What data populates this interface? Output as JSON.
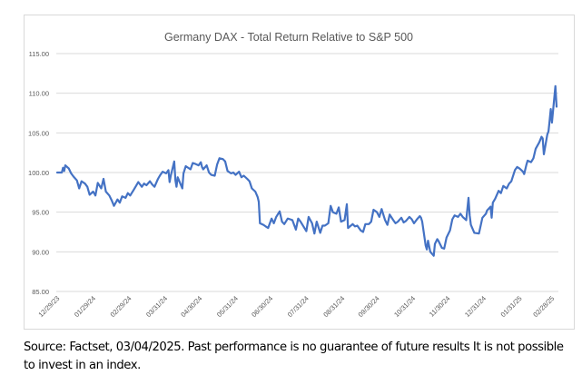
{
  "chart_data": {
    "type": "line",
    "title": "Germany DAX - Total Return Relative to S&P 500",
    "xlabel": "",
    "ylabel": "",
    "ylim": [
      85,
      115
    ],
    "yticks": [
      "85.00",
      "90.00",
      "95.00",
      "100.00",
      "105.00",
      "110.00",
      "115.00"
    ],
    "ytick_values": [
      85,
      90,
      95,
      100,
      105,
      110,
      115
    ],
    "xticks": [
      "12/29/23",
      "01/29/24",
      "02/29/24",
      "03/31/24",
      "04/30/24",
      "05/31/24",
      "06/30/24",
      "07/31/24",
      "08/31/24",
      "09/30/24",
      "10/31/24",
      "11/30/24",
      "12/31/24",
      "01/31/25",
      "02/28/25"
    ],
    "x_range": [
      "2023-12-29",
      "2025-03-04"
    ],
    "grid": "horizontal",
    "legend": "none",
    "line_color": "#4472c4",
    "series": [
      {
        "name": "Germany DAX - Total Return Relative to S&P 500",
        "points": [
          [
            "2023-12-29",
            100.0
          ],
          [
            "2024-01-02",
            100.0
          ],
          [
            "2024-01-03",
            100.6
          ],
          [
            "2024-01-04",
            100.2
          ],
          [
            "2024-01-05",
            100.9
          ],
          [
            "2024-01-08",
            100.5
          ],
          [
            "2024-01-10",
            99.9
          ],
          [
            "2024-01-12",
            99.5
          ],
          [
            "2024-01-15",
            99.0
          ],
          [
            "2024-01-17",
            98.0
          ],
          [
            "2024-01-19",
            98.9
          ],
          [
            "2024-01-22",
            98.6
          ],
          [
            "2024-01-24",
            98.2
          ],
          [
            "2024-01-26",
            97.2
          ],
          [
            "2024-01-29",
            97.6
          ],
          [
            "2024-01-31",
            97.1
          ],
          [
            "2024-02-02",
            98.7
          ],
          [
            "2024-02-05",
            98.0
          ],
          [
            "2024-02-07",
            99.2
          ],
          [
            "2024-02-09",
            97.6
          ],
          [
            "2024-02-12",
            97.1
          ],
          [
            "2024-02-14",
            96.5
          ],
          [
            "2024-02-16",
            95.8
          ],
          [
            "2024-02-19",
            96.6
          ],
          [
            "2024-02-21",
            96.2
          ],
          [
            "2024-02-23",
            97.0
          ],
          [
            "2024-02-26",
            96.8
          ],
          [
            "2024-02-28",
            97.4
          ],
          [
            "2024-03-01",
            97.1
          ],
          [
            "2024-03-04",
            97.8
          ],
          [
            "2024-03-06",
            98.3
          ],
          [
            "2024-03-08",
            98.8
          ],
          [
            "2024-03-11",
            98.2
          ],
          [
            "2024-03-13",
            98.6
          ],
          [
            "2024-03-15",
            98.4
          ],
          [
            "2024-03-18",
            98.9
          ],
          [
            "2024-03-20",
            98.5
          ],
          [
            "2024-03-22",
            98.2
          ],
          [
            "2024-03-25",
            99.2
          ],
          [
            "2024-03-27",
            99.7
          ],
          [
            "2024-03-29",
            100.1
          ],
          [
            "2024-04-01",
            99.9
          ],
          [
            "2024-04-03",
            100.3
          ],
          [
            "2024-04-04",
            98.8
          ],
          [
            "2024-04-05",
            99.6
          ],
          [
            "2024-04-08",
            101.4
          ],
          [
            "2024-04-09",
            99.0
          ],
          [
            "2024-04-10",
            98.2
          ],
          [
            "2024-04-11",
            99.4
          ],
          [
            "2024-04-15",
            98.0
          ],
          [
            "2024-04-16",
            99.9
          ],
          [
            "2024-04-18",
            100.8
          ],
          [
            "2024-04-22",
            100.4
          ],
          [
            "2024-04-24",
            101.2
          ],
          [
            "2024-04-26",
            101.1
          ],
          [
            "2024-04-29",
            100.9
          ],
          [
            "2024-05-01",
            101.3
          ],
          [
            "2024-05-02",
            100.7
          ],
          [
            "2024-05-03",
            100.4
          ],
          [
            "2024-05-06",
            100.9
          ],
          [
            "2024-05-08",
            100.0
          ],
          [
            "2024-05-10",
            99.7
          ],
          [
            "2024-05-13",
            99.6
          ],
          [
            "2024-05-15",
            101.0
          ],
          [
            "2024-05-17",
            101.8
          ],
          [
            "2024-05-20",
            101.7
          ],
          [
            "2024-05-22",
            101.4
          ],
          [
            "2024-05-24",
            100.2
          ],
          [
            "2024-05-27",
            99.9
          ],
          [
            "2024-05-29",
            100.0
          ],
          [
            "2024-05-31",
            99.7
          ],
          [
            "2024-06-03",
            100.1
          ],
          [
            "2024-06-05",
            99.4
          ],
          [
            "2024-06-07",
            99.6
          ],
          [
            "2024-06-10",
            99.2
          ],
          [
            "2024-06-12",
            98.9
          ],
          [
            "2024-06-14",
            98.0
          ],
          [
            "2024-06-17",
            97.6
          ],
          [
            "2024-06-19",
            96.9
          ],
          [
            "2024-06-20",
            96.3
          ],
          [
            "2024-06-21",
            93.6
          ],
          [
            "2024-06-24",
            93.4
          ],
          [
            "2024-06-26",
            93.2
          ],
          [
            "2024-06-28",
            93.0
          ],
          [
            "2024-07-01",
            94.2
          ],
          [
            "2024-07-03",
            93.6
          ],
          [
            "2024-07-05",
            94.4
          ],
          [
            "2024-07-08",
            95.1
          ],
          [
            "2024-07-10",
            93.8
          ],
          [
            "2024-07-12",
            93.5
          ],
          [
            "2024-07-15",
            94.2
          ],
          [
            "2024-07-17",
            94.1
          ],
          [
            "2024-07-19",
            94.0
          ],
          [
            "2024-07-22",
            92.8
          ],
          [
            "2024-07-24",
            94.2
          ],
          [
            "2024-07-26",
            93.8
          ],
          [
            "2024-07-29",
            93.1
          ],
          [
            "2024-07-31",
            92.6
          ],
          [
            "2024-08-02",
            94.4
          ],
          [
            "2024-08-05",
            93.6
          ],
          [
            "2024-08-07",
            92.3
          ],
          [
            "2024-08-09",
            93.8
          ],
          [
            "2024-08-12",
            92.4
          ],
          [
            "2024-08-14",
            93.3
          ],
          [
            "2024-08-16",
            93.3
          ],
          [
            "2024-08-19",
            93.6
          ],
          [
            "2024-08-21",
            95.8
          ],
          [
            "2024-08-23",
            95.0
          ],
          [
            "2024-08-26",
            94.8
          ],
          [
            "2024-08-28",
            95.6
          ],
          [
            "2024-08-30",
            93.8
          ],
          [
            "2024-09-02",
            94.0
          ],
          [
            "2024-09-04",
            96.0
          ],
          [
            "2024-09-05",
            93.0
          ],
          [
            "2024-09-09",
            93.5
          ],
          [
            "2024-09-11",
            93.2
          ],
          [
            "2024-09-13",
            93.3
          ],
          [
            "2024-09-16",
            92.7
          ],
          [
            "2024-09-18",
            92.5
          ],
          [
            "2024-09-20",
            93.5
          ],
          [
            "2024-09-23",
            93.5
          ],
          [
            "2024-09-25",
            93.8
          ],
          [
            "2024-09-27",
            95.3
          ],
          [
            "2024-09-30",
            95.0
          ],
          [
            "2024-10-02",
            94.4
          ],
          [
            "2024-10-04",
            95.4
          ],
          [
            "2024-10-07",
            94.0
          ],
          [
            "2024-10-09",
            93.4
          ],
          [
            "2024-10-11",
            94.7
          ],
          [
            "2024-10-14",
            94.0
          ],
          [
            "2024-10-16",
            93.6
          ],
          [
            "2024-10-18",
            93.8
          ],
          [
            "2024-10-21",
            94.3
          ],
          [
            "2024-10-23",
            93.7
          ],
          [
            "2024-10-25",
            93.9
          ],
          [
            "2024-10-28",
            94.4
          ],
          [
            "2024-10-30",
            94.1
          ],
          [
            "2024-11-01",
            93.6
          ],
          [
            "2024-11-04",
            94.2
          ],
          [
            "2024-11-06",
            94.5
          ],
          [
            "2024-11-07",
            94.3
          ],
          [
            "2024-11-08",
            93.8
          ],
          [
            "2024-11-11",
            90.8
          ],
          [
            "2024-11-12",
            90.3
          ],
          [
            "2024-11-13",
            91.4
          ],
          [
            "2024-11-15",
            90.0
          ],
          [
            "2024-11-18",
            89.5
          ],
          [
            "2024-11-19",
            91.0
          ],
          [
            "2024-11-21",
            91.6
          ],
          [
            "2024-11-22",
            91.4
          ],
          [
            "2024-11-25",
            90.5
          ],
          [
            "2024-11-27",
            90.4
          ],
          [
            "2024-11-29",
            91.8
          ],
          [
            "2024-12-02",
            92.7
          ],
          [
            "2024-12-04",
            94.1
          ],
          [
            "2024-12-06",
            94.6
          ],
          [
            "2024-12-09",
            94.4
          ],
          [
            "2024-12-11",
            94.8
          ],
          [
            "2024-12-13",
            94.4
          ],
          [
            "2024-12-16",
            94.0
          ],
          [
            "2024-12-18",
            96.8
          ],
          [
            "2024-12-19",
            94.6
          ],
          [
            "2024-12-20",
            93.4
          ],
          [
            "2024-12-23",
            92.4
          ],
          [
            "2024-12-27",
            92.3
          ],
          [
            "2024-12-30",
            94.3
          ],
          [
            "2025-01-02",
            94.8
          ],
          [
            "2025-01-03",
            95.2
          ],
          [
            "2025-01-06",
            95.7
          ],
          [
            "2025-01-07",
            94.3
          ],
          [
            "2025-01-08",
            96.2
          ],
          [
            "2025-01-10",
            96.7
          ],
          [
            "2025-01-13",
            97.7
          ],
          [
            "2025-01-15",
            97.4
          ],
          [
            "2025-01-17",
            98.3
          ],
          [
            "2025-01-20",
            98.0
          ],
          [
            "2025-01-22",
            98.6
          ],
          [
            "2025-01-24",
            98.9
          ],
          [
            "2025-01-27",
            100.3
          ],
          [
            "2025-01-29",
            100.7
          ],
          [
            "2025-01-31",
            100.5
          ],
          [
            "2025-02-03",
            100.1
          ],
          [
            "2025-02-04",
            99.8
          ],
          [
            "2025-02-06",
            101.0
          ],
          [
            "2025-02-07",
            101.5
          ],
          [
            "2025-02-10",
            101.3
          ],
          [
            "2025-02-12",
            101.8
          ],
          [
            "2025-02-14",
            103.0
          ],
          [
            "2025-02-17",
            103.8
          ],
          [
            "2025-02-19",
            104.5
          ],
          [
            "2025-02-20",
            104.3
          ],
          [
            "2025-02-21",
            102.3
          ],
          [
            "2025-02-24",
            104.8
          ],
          [
            "2025-02-25",
            105.2
          ],
          [
            "2025-02-26",
            106.5
          ],
          [
            "2025-02-27",
            108.0
          ],
          [
            "2025-02-28",
            106.3
          ],
          [
            "2025-03-03",
            110.9
          ],
          [
            "2025-03-04",
            108.3
          ]
        ]
      }
    ]
  },
  "caption": {
    "text": "Source: Factset, 03/04/2025. Past performance is no guarantee of future results It is not possible to invest in an index."
  }
}
